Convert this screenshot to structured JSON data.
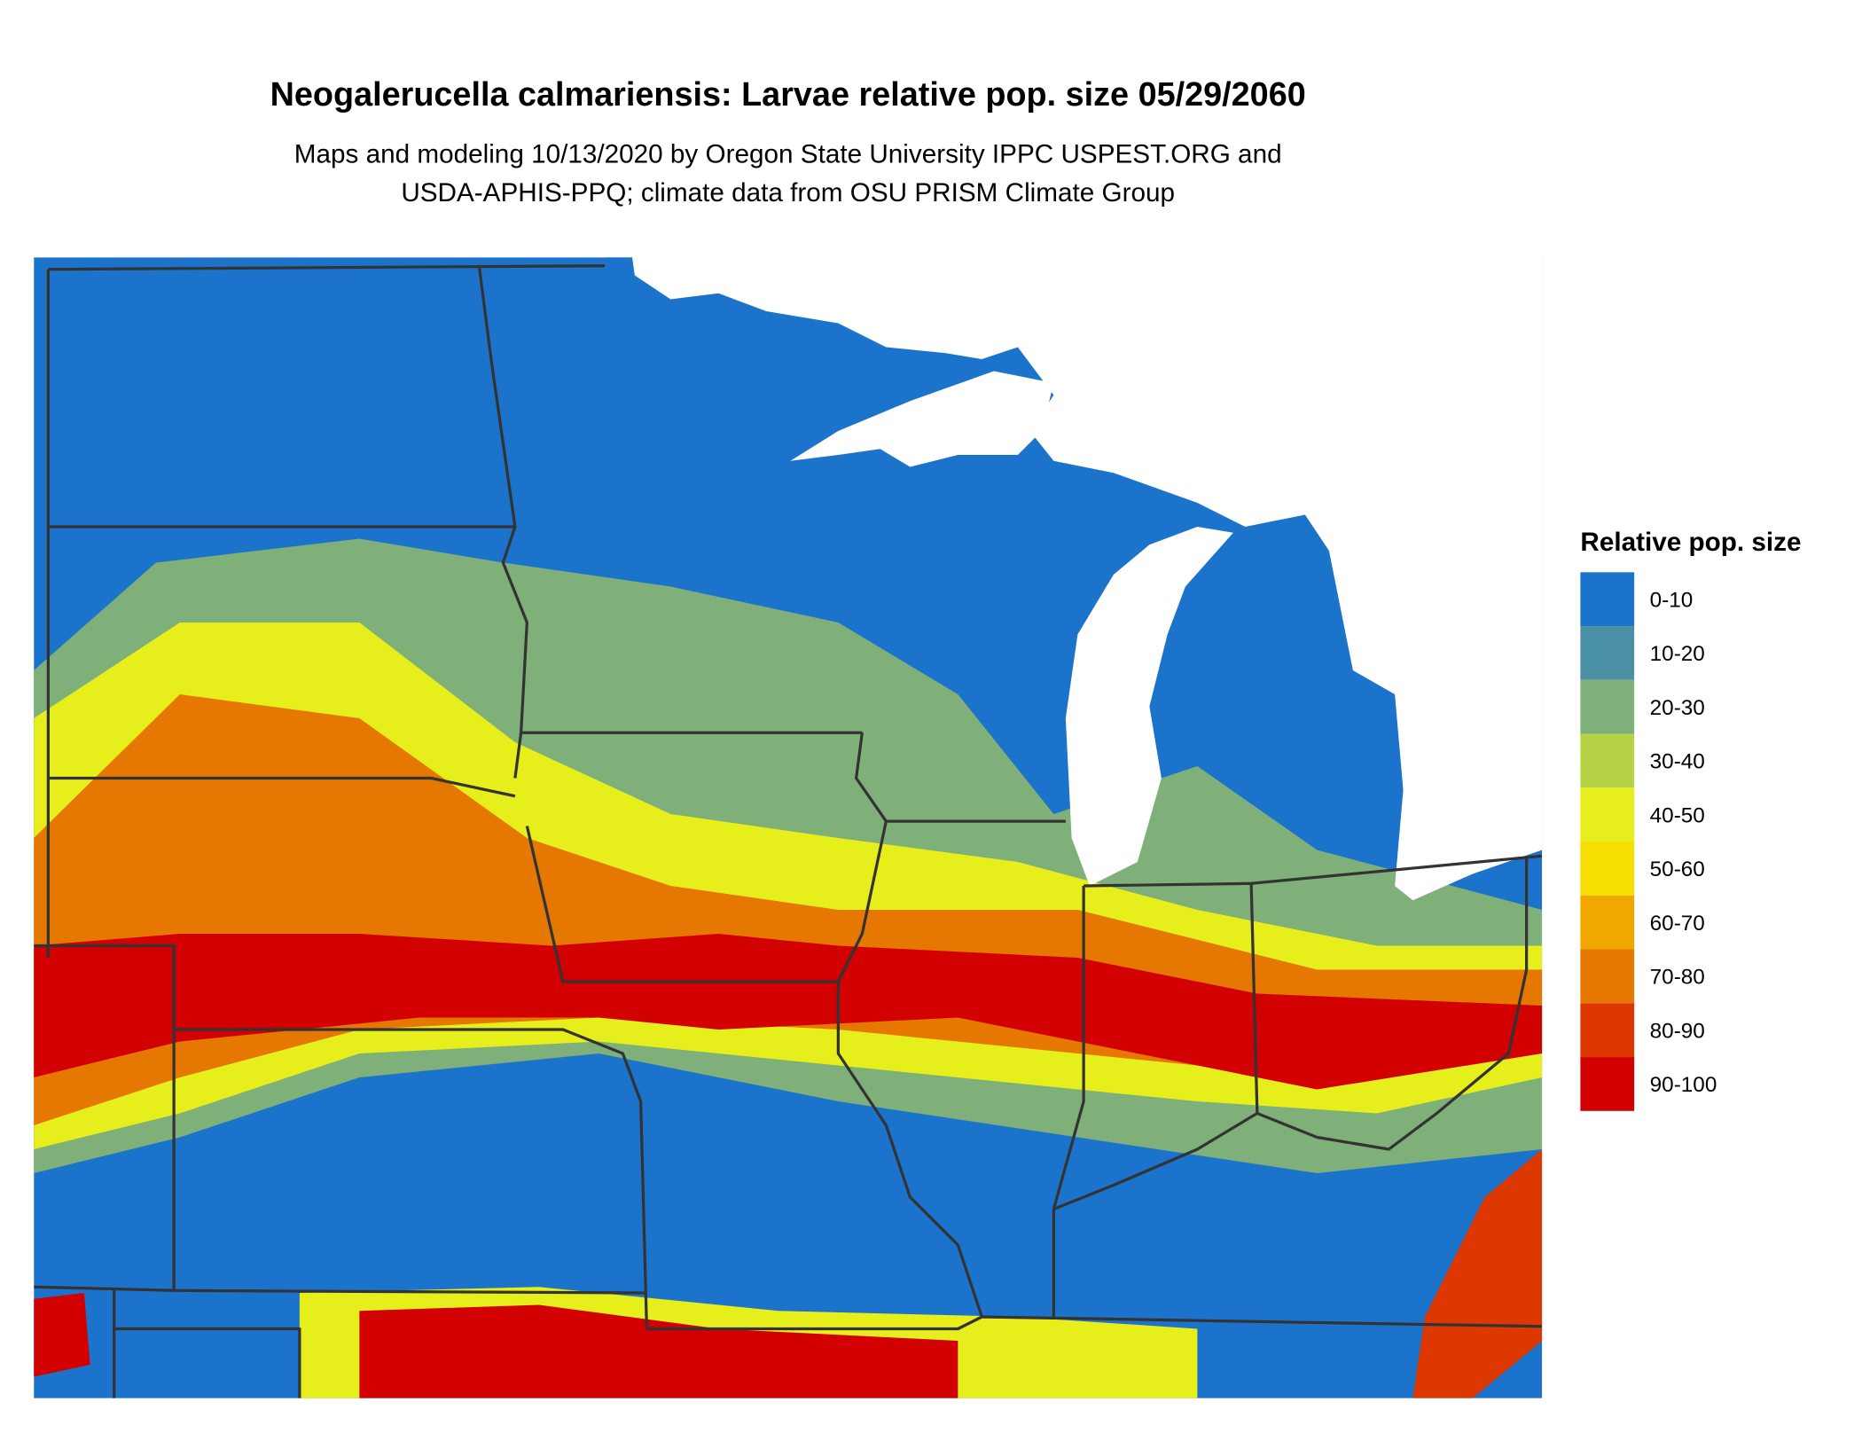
{
  "title": "Neogalerucella calmariensis: Larvae relative pop. size 05/29/2060",
  "subtitle": [
    "Maps and modeling 10/13/2020 by Oregon State University IPPC USPEST.ORG and",
    "USDA-APHIS-PPQ; climate data from OSU PRISM Climate Group"
  ],
  "legend": {
    "title": "Relative pop. size",
    "items": [
      {
        "label": "0-10",
        "color": "#1c73cc"
      },
      {
        "label": "10-20",
        "color": "#4a90a4"
      },
      {
        "label": "20-30",
        "color": "#80b07a"
      },
      {
        "label": "30-40",
        "color": "#b6d144"
      },
      {
        "label": "40-50",
        "color": "#e6ee1c"
      },
      {
        "label": "50-60",
        "color": "#f5de00"
      },
      {
        "label": "60-70",
        "color": "#f0a800"
      },
      {
        "label": "70-80",
        "color": "#e67700"
      },
      {
        "label": "80-90",
        "color": "#dc3800"
      },
      {
        "label": "90-100",
        "color": "#d20000"
      }
    ]
  }
}
